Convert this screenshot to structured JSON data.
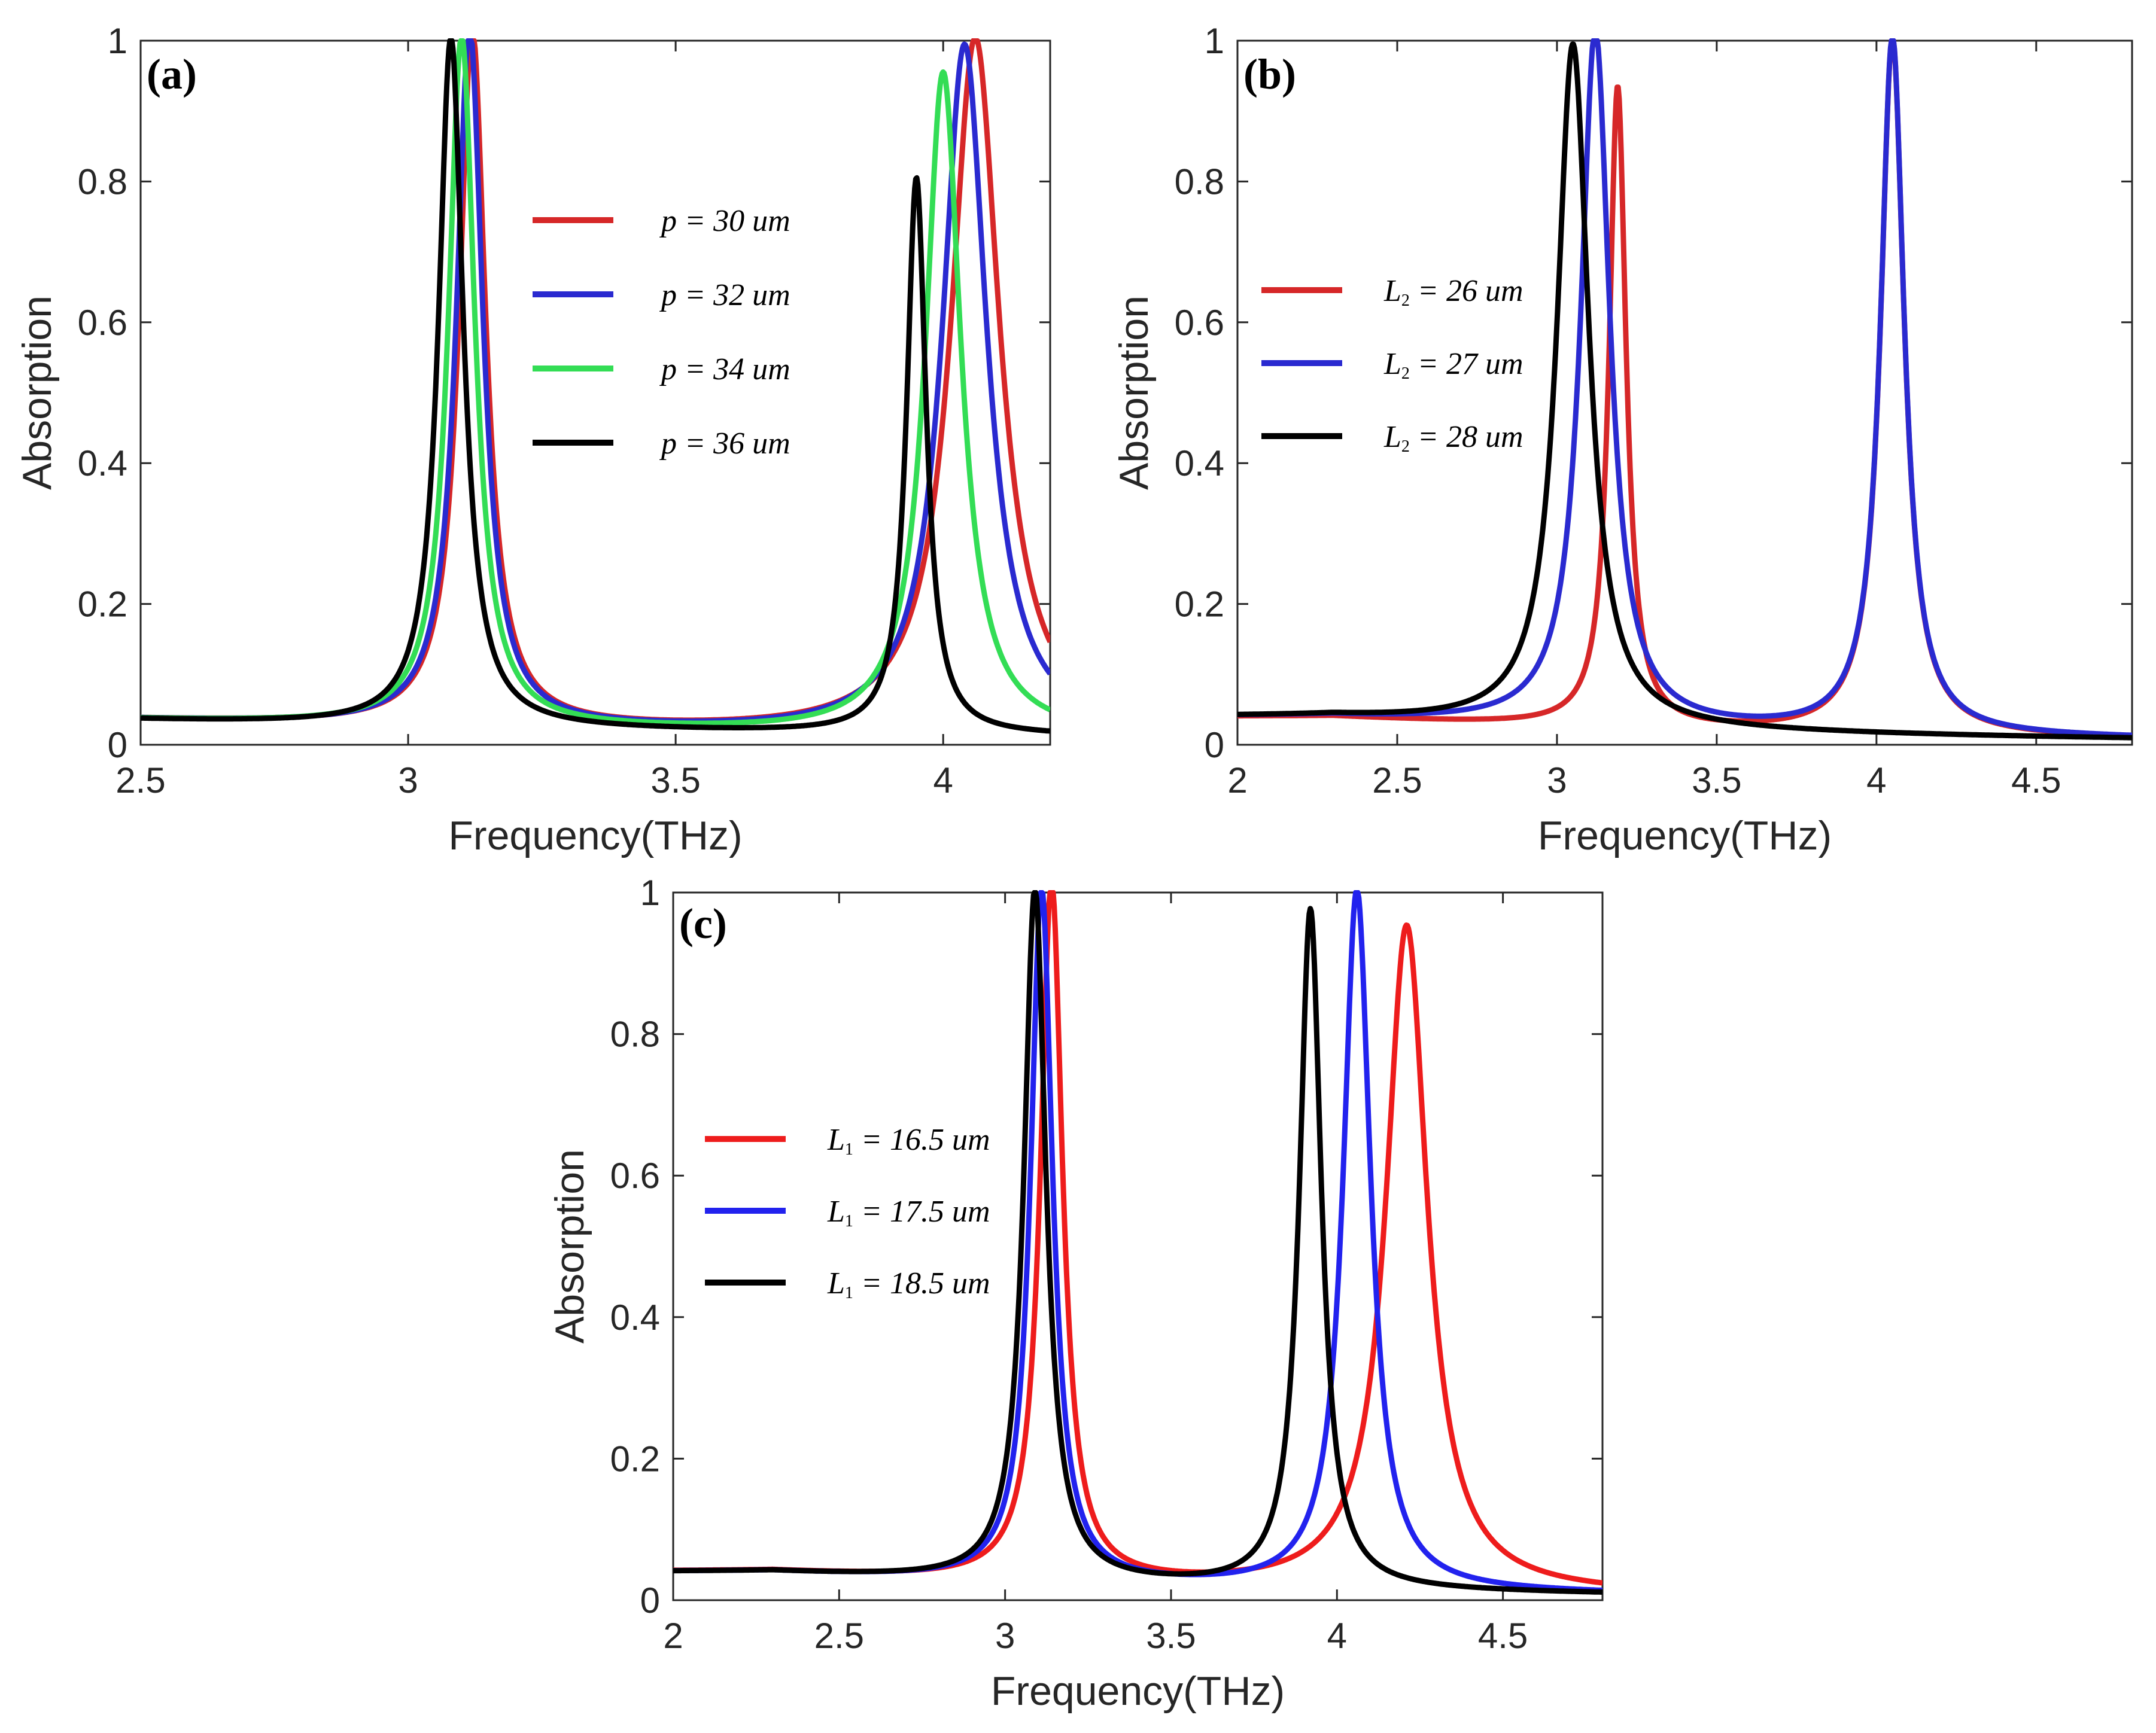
{
  "chart_data": [
    {
      "panel": "a",
      "panel_label": "(a)",
      "type": "line",
      "xlabel": "Frequency(THz)",
      "ylabel": "Absorption",
      "xlim": [
        2.5,
        4.2
      ],
      "ylim": [
        0,
        1
      ],
      "xticks": [
        "2.5",
        "3",
        "3.5",
        "4"
      ],
      "xtick_values": [
        2.5,
        3,
        3.5,
        4
      ],
      "yticks": [
        "0",
        "0.2",
        "0.4",
        "0.6",
        "0.8",
        "1"
      ],
      "ytick_values": [
        0,
        0.2,
        0.4,
        0.6,
        0.8,
        1
      ],
      "legend": {
        "position": "upper-middle"
      },
      "series": [
        {
          "name": "p = 30 um",
          "legend_var": "p",
          "legend_text": " = 30 um",
          "color": "#d62728",
          "peaks": [
            [
              3.12,
              0.99,
              0.03
            ],
            [
              4.06,
              0.99,
              0.055
            ]
          ]
        },
        {
          "name": "p = 32 um",
          "legend_var": "p",
          "legend_text": " = 32 um",
          "color": "#2a2ad0",
          "peaks": [
            [
              3.115,
              0.99,
              0.03
            ],
            [
              4.04,
              0.98,
              0.05
            ]
          ]
        },
        {
          "name": "p = 34 um",
          "legend_var": "p",
          "legend_text": " = 34 um",
          "color": "#33dd55",
          "peaks": [
            [
              3.1,
              0.98,
              0.03
            ],
            [
              4.0,
              0.94,
              0.04
            ]
          ]
        },
        {
          "name": "p = 36 um",
          "legend_var": "p",
          "legend_text": " = 36 um",
          "color": "#000000",
          "peaks": [
            [
              3.08,
              0.98,
              0.028
            ],
            [
              3.95,
              0.79,
              0.022
            ]
          ]
        }
      ]
    },
    {
      "panel": "b",
      "panel_label": "(b)",
      "type": "line",
      "xlabel": "Frequency(THz)",
      "ylabel": "Absorption",
      "xlim": [
        2,
        4.8
      ],
      "ylim": [
        0,
        1
      ],
      "xticks": [
        "2",
        "2.5",
        "3",
        "3.5",
        "4",
        "4.5"
      ],
      "xtick_values": [
        2,
        2.5,
        3,
        3.5,
        4,
        4.5
      ],
      "yticks": [
        "0",
        "0.2",
        "0.4",
        "0.6",
        "0.8",
        "1"
      ],
      "ytick_values": [
        0,
        0.2,
        0.4,
        0.6,
        0.8,
        1
      ],
      "legend": {
        "position": "middle-left"
      },
      "series": [
        {
          "name": "L2 = 26 um",
          "legend_var": "L",
          "legend_sub": "2",
          "legend_text": " = 26 um",
          "color": "#d62728",
          "peaks": [
            [
              3.19,
              0.91,
              0.032
            ],
            [
              4.05,
              0.99,
              0.045
            ]
          ]
        },
        {
          "name": "L2 = 27 um",
          "legend_var": "L",
          "legend_sub": "2",
          "legend_text": " = 27 um",
          "color": "#2a2ad0",
          "peaks": [
            [
              3.12,
              0.99,
              0.055
            ],
            [
              4.05,
              0.99,
              0.045
            ]
          ]
        },
        {
          "name": "L2 = 28 um",
          "legend_var": "L",
          "legend_sub": "2",
          "legend_text": " = 28 um",
          "color": "#000000",
          "peaks": [
            [
              3.05,
              0.97,
              0.06
            ]
          ]
        }
      ]
    },
    {
      "panel": "c",
      "panel_label": "(c)",
      "type": "line",
      "xlabel": "Frequency(THz)",
      "ylabel": "Absorption",
      "xlim": [
        2,
        4.8
      ],
      "ylim": [
        0,
        1
      ],
      "xticks": [
        "2",
        "2.5",
        "3",
        "3.5",
        "4",
        "4.5"
      ],
      "xtick_values": [
        2,
        2.5,
        3,
        3.5,
        4,
        4.5
      ],
      "yticks": [
        "0",
        "0.2",
        "0.4",
        "0.6",
        "0.8",
        "1"
      ],
      "ytick_values": [
        0,
        0.2,
        0.4,
        0.6,
        0.8,
        1
      ],
      "legend": {
        "position": "middle-left"
      },
      "series": [
        {
          "name": "L1 = 16.5 um",
          "legend_var": "L",
          "legend_sub": "1",
          "legend_text": " = 16.5 um",
          "color": "#ee1c1c",
          "peaks": [
            [
              3.14,
              0.99,
              0.04
            ],
            [
              4.21,
              0.94,
              0.075
            ]
          ]
        },
        {
          "name": "L1 = 17.5 um",
          "legend_var": "L",
          "legend_sub": "1",
          "legend_text": " = 17.5 um",
          "color": "#2222ee",
          "peaks": [
            [
              3.11,
              0.98,
              0.04
            ],
            [
              4.06,
              0.99,
              0.05
            ]
          ]
        },
        {
          "name": "L1 = 18.5 um",
          "legend_var": "L",
          "legend_sub": "1",
          "legend_text": " = 18.5 um",
          "color": "#000000",
          "peaks": [
            [
              3.09,
              0.98,
              0.04
            ],
            [
              3.92,
              0.96,
              0.04
            ]
          ]
        }
      ]
    }
  ]
}
